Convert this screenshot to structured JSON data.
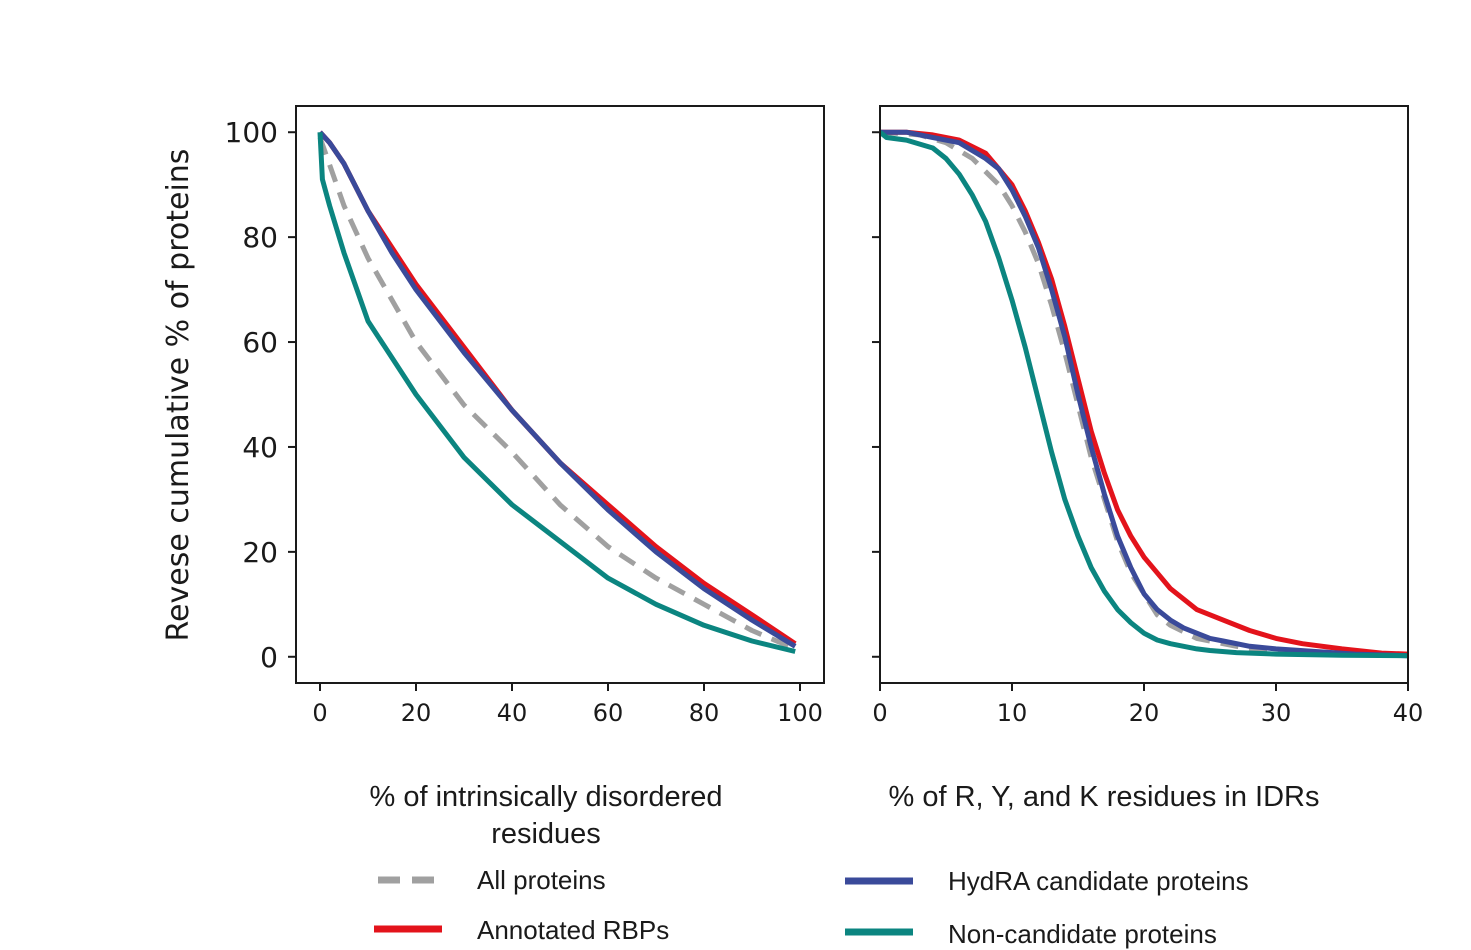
{
  "colors": {
    "all": "#a0a0a0",
    "rbp": "#e3131b",
    "hydra": "#3a4a9a",
    "noncand": "#0b8580"
  },
  "chart_data": [
    {
      "type": "line",
      "ylabel": "Revese cumulative % of proteins",
      "xlabel_lines": [
        "% of intrinsically disordered",
        "residues"
      ],
      "xlim": [
        -5,
        105
      ],
      "ylim": [
        -5,
        105
      ],
      "xticks": [
        0,
        20,
        40,
        60,
        80,
        100
      ],
      "yticks": [
        0,
        20,
        40,
        60,
        80,
        100
      ],
      "grid": false,
      "series": [
        {
          "name": "All proteins",
          "key": "all",
          "style": "dashed",
          "x": [
            0,
            5,
            10,
            20,
            30,
            40,
            50,
            60,
            70,
            80,
            90,
            99
          ],
          "y": [
            99,
            86,
            76,
            60,
            48,
            39,
            29,
            21,
            15,
            10,
            5,
            1.5
          ]
        },
        {
          "name": "Annotated RBPs",
          "key": "rbp",
          "style": "solid",
          "x": [
            0,
            2,
            5,
            10,
            15,
            20,
            30,
            40,
            50,
            60,
            70,
            80,
            90,
            99
          ],
          "y": [
            100,
            98,
            94,
            85,
            78,
            71,
            59,
            47,
            37,
            29,
            21,
            14,
            8,
            2.5
          ]
        },
        {
          "name": "HydRA candidate proteins",
          "key": "hydra",
          "style": "solid",
          "x": [
            0,
            2,
            5,
            10,
            15,
            20,
            30,
            40,
            50,
            60,
            70,
            80,
            90,
            99
          ],
          "y": [
            100,
            98,
            94,
            85,
            77,
            70,
            58,
            47,
            37,
            28,
            20,
            13,
            7,
            2
          ]
        },
        {
          "name": "Non-candidate proteins",
          "key": "noncand",
          "style": "solid",
          "x": [
            0,
            0.5,
            2,
            5,
            10,
            15,
            20,
            30,
            40,
            50,
            60,
            70,
            80,
            90,
            99
          ],
          "y": [
            100,
            91,
            86,
            77,
            64,
            57,
            50,
            38,
            29,
            22,
            15,
            10,
            6,
            3,
            1
          ]
        }
      ]
    },
    {
      "type": "line",
      "xlabel_lines": [
        "% of R, Y, and K residues in IDRs"
      ],
      "xlim": [
        0,
        40
      ],
      "ylim": [
        -5,
        105
      ],
      "xticks": [
        0,
        10,
        20,
        30,
        40
      ],
      "yticks": [
        0,
        20,
        40,
        60,
        80,
        100
      ],
      "grid": false,
      "series": [
        {
          "name": "All proteins",
          "key": "all",
          "style": "dashed",
          "x": [
            0,
            3,
            5,
            7,
            9,
            10,
            11,
            12,
            13,
            14,
            15,
            16,
            17,
            18,
            19,
            20,
            21,
            22,
            24,
            26,
            28,
            30,
            35,
            40
          ],
          "y": [
            100,
            99.5,
            98,
            95,
            90,
            86,
            81,
            75,
            67,
            58,
            48,
            38,
            30,
            22,
            16,
            12,
            8,
            6,
            3.5,
            2.5,
            1.5,
            1,
            0.5,
            0.3
          ]
        },
        {
          "name": "Annotated RBPs",
          "key": "rbp",
          "style": "solid",
          "x": [
            0,
            2,
            4,
            6,
            8,
            9,
            10,
            11,
            12,
            13,
            14,
            15,
            16,
            17,
            18,
            19,
            20,
            21,
            22,
            23,
            24,
            26,
            28,
            30,
            32,
            35,
            38,
            40
          ],
          "y": [
            100,
            100,
            99.5,
            98.5,
            96,
            93,
            90,
            85,
            79,
            72,
            63,
            53,
            43,
            35,
            28,
            23,
            19,
            16,
            13,
            11,
            9,
            7,
            5,
            3.5,
            2.5,
            1.5,
            0.7,
            0.5
          ]
        },
        {
          "name": "HydRA candidate proteins",
          "key": "hydra",
          "style": "solid",
          "x": [
            0,
            2,
            4,
            6,
            8,
            9,
            10,
            11,
            12,
            13,
            14,
            15,
            16,
            17,
            18,
            19,
            20,
            21,
            22,
            23,
            24,
            25,
            26,
            28,
            30,
            33,
            36,
            40
          ],
          "y": [
            100,
            100,
            99,
            98,
            95,
            93,
            89,
            84,
            78,
            70,
            61,
            50,
            40,
            31,
            23,
            17,
            12,
            9,
            7,
            5.5,
            4.5,
            3.5,
            3,
            2,
            1.5,
            1,
            0.5,
            0.2
          ]
        },
        {
          "name": "Non-candidate proteins",
          "key": "noncand",
          "style": "solid",
          "x": [
            0,
            0.5,
            2,
            4,
            5,
            6,
            7,
            8,
            9,
            10,
            11,
            12,
            13,
            14,
            15,
            16,
            17,
            18,
            19,
            20,
            21,
            22,
            23,
            24,
            25,
            27,
            30,
            35,
            40
          ],
          "y": [
            100,
            99,
            98.5,
            97,
            95,
            92,
            88,
            83,
            76,
            68,
            59,
            49,
            39,
            30,
            23,
            17,
            12.5,
            9,
            6.5,
            4.5,
            3.2,
            2.5,
            2,
            1.5,
            1.2,
            0.8,
            0.5,
            0.3,
            0.2
          ]
        }
      ]
    }
  ],
  "legend": {
    "placement": "bottom",
    "entries": [
      {
        "label": "All proteins",
        "key": "all",
        "style": "dashed"
      },
      {
        "label": "Annotated RBPs",
        "key": "rbp",
        "style": "solid"
      },
      {
        "label": "HydRA candidate proteins",
        "key": "hydra",
        "style": "solid"
      },
      {
        "label": "Non-candidate proteins",
        "key": "noncand",
        "style": "solid"
      }
    ]
  }
}
